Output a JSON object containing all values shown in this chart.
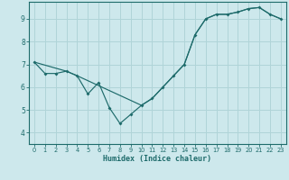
{
  "xlabel": "Humidex (Indice chaleur)",
  "background_color": "#cde8ec",
  "line_color": "#1e6b6b",
  "grid_color": "#b0d8dc",
  "xlim": [
    -0.5,
    23.5
  ],
  "ylim": [
    3.5,
    9.75
  ],
  "xticks": [
    0,
    1,
    2,
    3,
    4,
    5,
    6,
    7,
    8,
    9,
    10,
    11,
    12,
    13,
    14,
    15,
    16,
    17,
    18,
    19,
    20,
    21,
    22,
    23
  ],
  "yticks": [
    4,
    5,
    6,
    7,
    8,
    9
  ],
  "curve1_x": [
    0,
    1,
    2,
    3,
    4,
    5,
    6,
    7,
    8,
    9,
    10,
    11,
    12,
    13,
    14,
    15,
    16,
    17,
    18,
    19,
    20,
    21,
    22,
    23
  ],
  "curve1_y": [
    7.1,
    6.6,
    6.6,
    6.7,
    6.5,
    5.7,
    6.2,
    5.1,
    4.4,
    4.8,
    5.2,
    5.5,
    6.0,
    6.5,
    7.0,
    8.3,
    9.0,
    9.2,
    9.2,
    9.3,
    9.45,
    9.5,
    9.2,
    9.0
  ],
  "curve2_x": [
    0,
    3,
    4,
    10,
    11,
    12,
    13,
    14,
    15,
    16,
    17,
    18,
    19,
    20,
    21,
    22,
    23
  ],
  "curve2_y": [
    7.1,
    6.7,
    6.5,
    5.2,
    5.5,
    6.0,
    6.5,
    7.0,
    8.3,
    9.0,
    9.2,
    9.2,
    9.3,
    9.45,
    9.5,
    9.2,
    9.0
  ]
}
